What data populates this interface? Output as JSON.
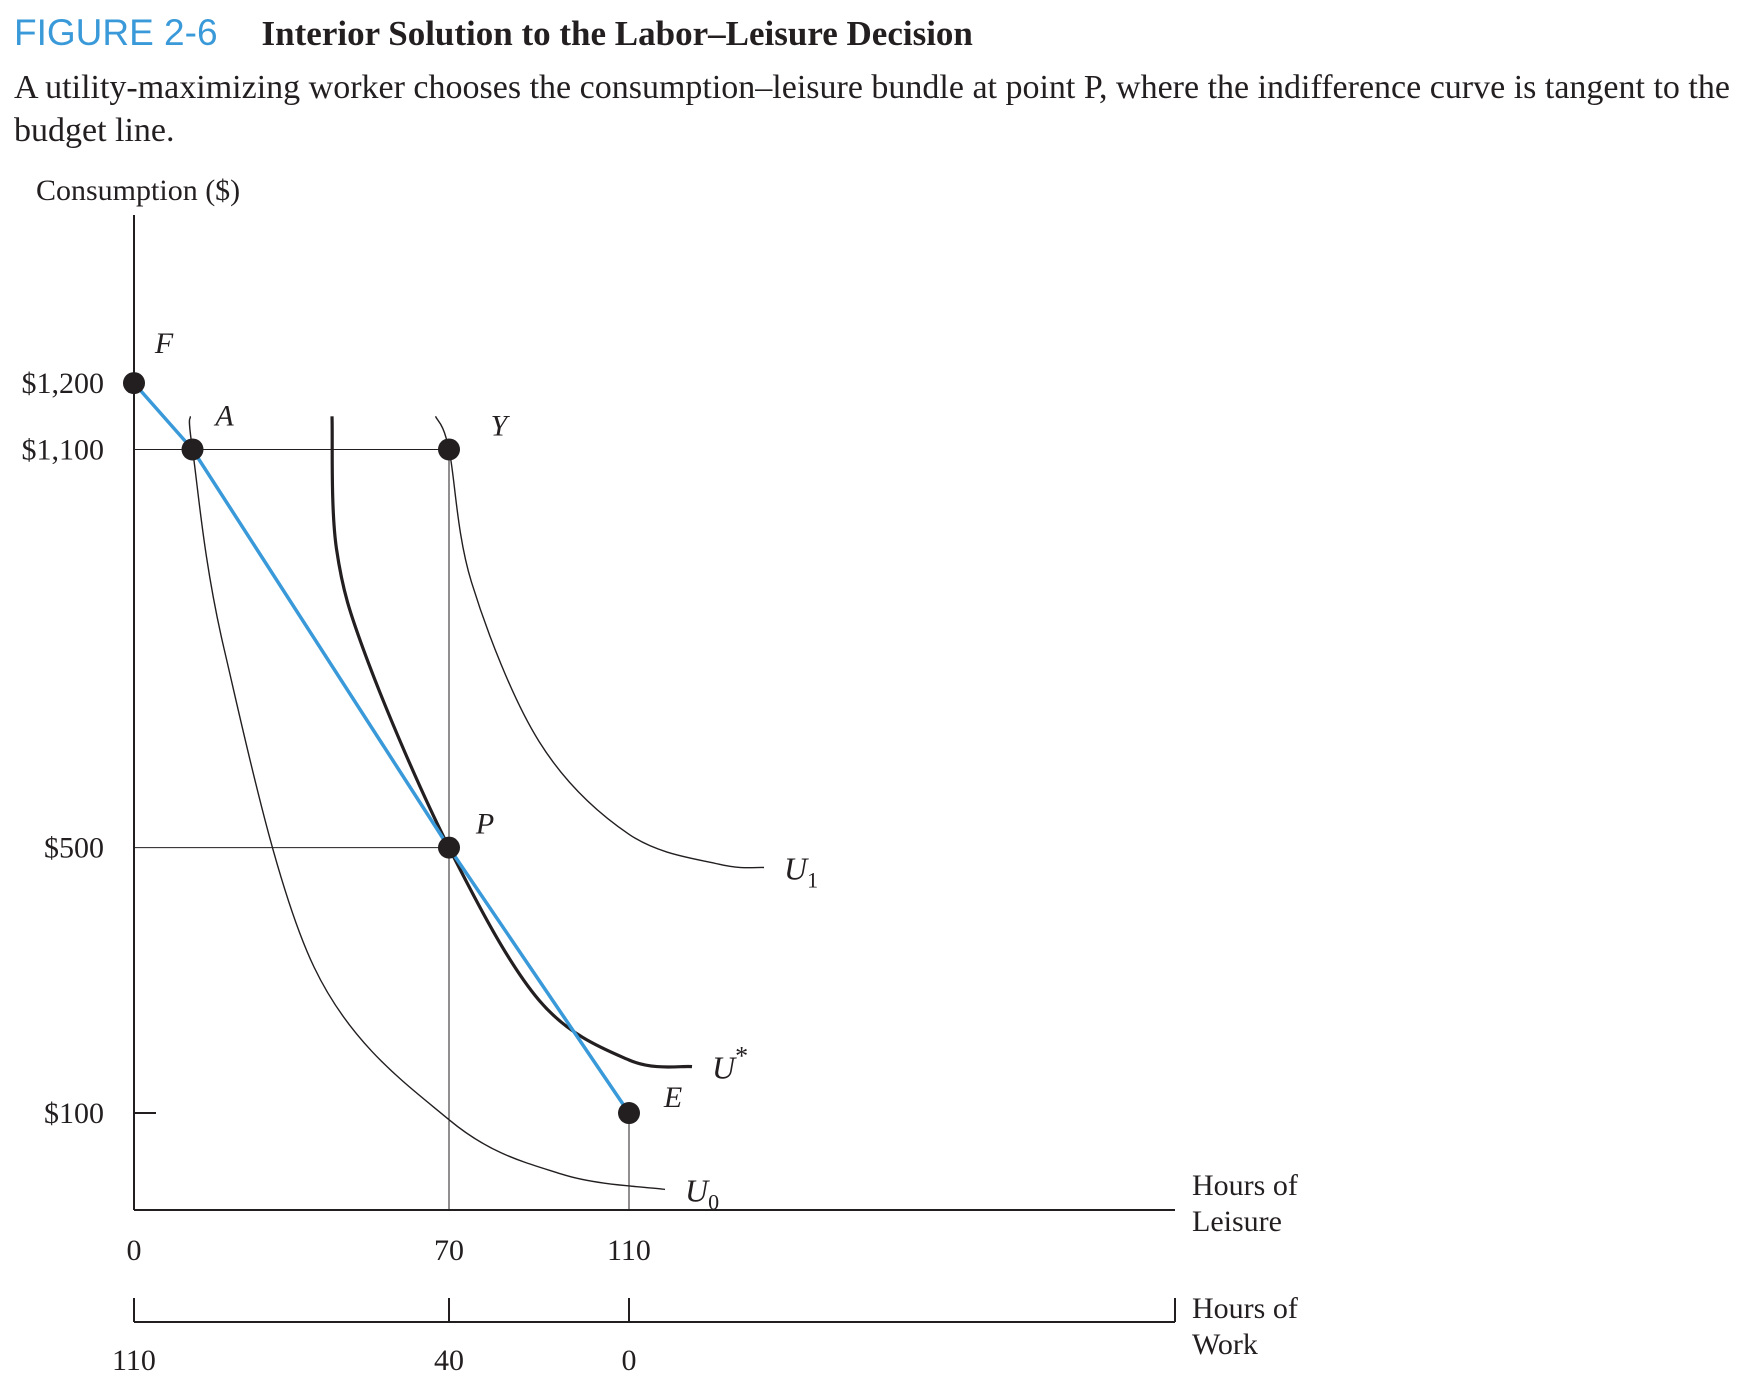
{
  "figure": {
    "label": "FIGURE 2-6",
    "title": "Interior Solution to the Labor–Leisure Decision",
    "caption": "A utility-maximizing worker chooses the consumption–leisure bundle at point P, where the indifference curve is tangent to the budget line."
  },
  "colors": {
    "budget_line": "#3a9ad9",
    "curves": "#231f20",
    "figure_label": "#3a9ad9"
  },
  "chart_data": {
    "type": "line",
    "ylabel": "Consumption ($)",
    "xlabel": "Hours of Leisure",
    "x2label": "Hours of Work",
    "xlim": [
      0,
      146
    ],
    "ylim": [
      -225,
      2000
    ],
    "xticks": [
      {
        "value": 0,
        "label": "0"
      },
      {
        "value": 70,
        "label": "70"
      },
      {
        "value": 110,
        "label": "110"
      }
    ],
    "x2ticks": [
      {
        "value": 0,
        "label": "110"
      },
      {
        "value": 70,
        "label": "40"
      },
      {
        "value": 110,
        "label": "0"
      }
    ],
    "yticks": [
      {
        "value": 1200,
        "label": "$1,200"
      },
      {
        "value": 1100,
        "label": "$1,100"
      },
      {
        "value": 500,
        "label": "$500"
      },
      {
        "value": 100,
        "label": "$100"
      }
    ],
    "budget_line": {
      "points": [
        [
          0,
          1200
        ],
        [
          13,
          1100
        ],
        [
          70,
          500
        ],
        [
          110,
          100
        ]
      ]
    },
    "indifference_curves": [
      {
        "name": "U0",
        "label_main": "U",
        "label_sub": "0",
        "points": [
          [
            12.5,
            1150
          ],
          [
            13,
            1100
          ],
          [
            20,
            800
          ],
          [
            40,
            320
          ],
          [
            70,
            90
          ],
          [
            95,
            8
          ],
          [
            118,
            -15
          ]
        ]
      },
      {
        "name": "U*",
        "label_main": "U",
        "label_sup": "*",
        "points": [
          [
            44,
            1150
          ],
          [
            45,
            950
          ],
          [
            52,
            780
          ],
          [
            70,
            500
          ],
          [
            90,
            270
          ],
          [
            110,
            180
          ],
          [
            124,
            170
          ]
        ]
      },
      {
        "name": "U1",
        "label_main": "U",
        "label_sub": "1",
        "points": [
          [
            67,
            1150
          ],
          [
            70,
            1100
          ],
          [
            75,
            900
          ],
          [
            90,
            660
          ],
          [
            110,
            520
          ],
          [
            130,
            475
          ],
          [
            140,
            470
          ]
        ]
      }
    ],
    "points": [
      {
        "label": "F",
        "x": 0,
        "y": 1200
      },
      {
        "label": "A",
        "x": 13,
        "y": 1100
      },
      {
        "label": "Y",
        "x": 70,
        "y": 1100
      },
      {
        "label": "P",
        "x": 70,
        "y": 500
      },
      {
        "label": "E",
        "x": 110,
        "y": 100
      }
    ],
    "grid": false
  }
}
